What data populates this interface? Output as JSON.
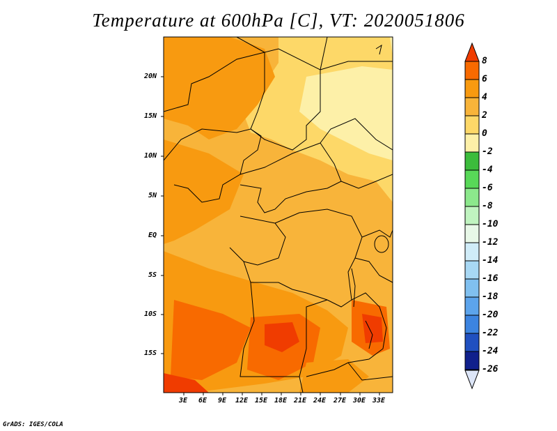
{
  "title": "Temperature at 600hPa [C], VT: 2020051806",
  "y_axis_labels": [
    "20N",
    "15N",
    "10N",
    "5N",
    "EQ",
    "5S",
    "10S",
    "15S"
  ],
  "x_axis_labels": [
    "3E",
    "6E",
    "9E",
    "12E",
    "15E",
    "18E",
    "21E",
    "24E",
    "27E",
    "30E",
    "33E"
  ],
  "colorbar": {
    "labels": [
      "8",
      "6",
      "4",
      "2",
      "0",
      "-2",
      "-4",
      "-6",
      "-8",
      "-10",
      "-12",
      "-14",
      "-16",
      "-18",
      "-20",
      "-22",
      "-24",
      "-26"
    ],
    "colors": [
      "#f03c00",
      "#f86a00",
      "#f89a10",
      "#f8b43a",
      "#fdd868",
      "#fdf0a8",
      "#3cbc3c",
      "#58d858",
      "#8ce88c",
      "#c0f4c0",
      "#e8f8e8",
      "#d0ecf8",
      "#a8d8f4",
      "#80c0f0",
      "#5ca4ec",
      "#3c84e0",
      "#2050c0",
      "#10208c"
    ]
  },
  "credit": "GrADS: IGES/COLA"
}
